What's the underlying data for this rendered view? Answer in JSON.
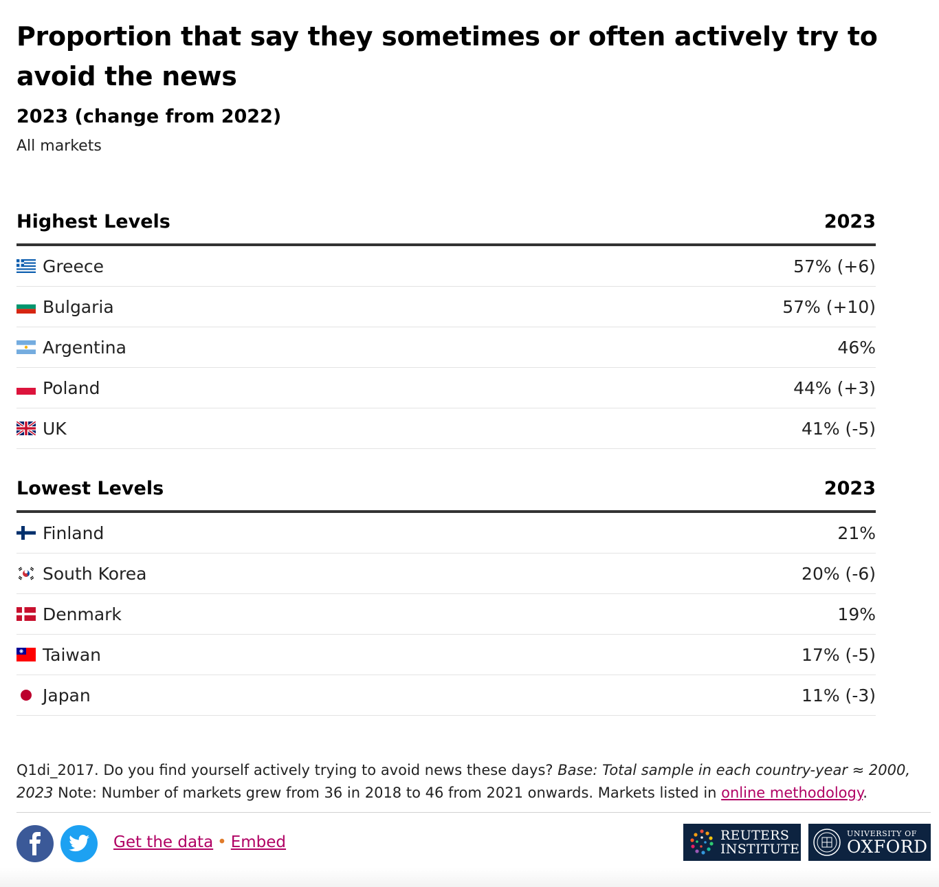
{
  "title": "Proportion that say they sometimes or often actively try to avoid the news",
  "subtitle": "2023 (change from 2022)",
  "markets": "All markets",
  "chart_data": {
    "type": "table",
    "title": "Proportion that say they sometimes or often actively try to avoid the news",
    "subtitle": "2023 (change from 2022)",
    "sections": [
      {
        "heading": "Highest Levels",
        "column": "2023",
        "rows": [
          {
            "country": "Greece",
            "flag": "greece-flag",
            "value": 57,
            "display": "57% (+6)"
          },
          {
            "country": "Bulgaria",
            "flag": "bulgaria-flag",
            "value": 57,
            "display": "57% (+10)"
          },
          {
            "country": "Argentina",
            "flag": "argentina-flag",
            "value": 46,
            "display": "46%"
          },
          {
            "country": "Poland",
            "flag": "poland-flag",
            "value": 44,
            "display": "44% (+3)"
          },
          {
            "country": "UK",
            "flag": "uk-flag",
            "value": 41,
            "display": "41% (-5)"
          }
        ]
      },
      {
        "heading": "Lowest Levels",
        "column": "2023",
        "rows": [
          {
            "country": "Finland",
            "flag": "finland-flag",
            "value": 21,
            "display": "21%"
          },
          {
            "country": "South Korea",
            "flag": "south-korea-flag",
            "value": 20,
            "display": "20% (-6)"
          },
          {
            "country": "Denmark",
            "flag": "denmark-flag",
            "value": 19,
            "display": "19%"
          },
          {
            "country": "Taiwan",
            "flag": "taiwan-flag",
            "value": 17,
            "display": "17% (-5)"
          },
          {
            "country": "Japan",
            "flag": "japan-flag",
            "value": 11,
            "display": "11% (-3)"
          }
        ]
      }
    ]
  },
  "note": {
    "code": "Q1di_2017.",
    "question": " Do you find yourself actively trying to avoid news these days? ",
    "base": "Base: Total sample in each country-year ≈ 2000, 2023",
    "text": " Note: Number of markets grew from 36 in 2018 to 46 from 2021 onwards. Markets listed in ",
    "link": "online methodology",
    "end": "."
  },
  "footer": {
    "get_data": "Get the data",
    "separator": "•",
    "embed": "Embed",
    "reuters_line1": "REUTERS",
    "reuters_line2": "INSTITUTE",
    "oxford_line1": "UNIVERSITY OF",
    "oxford_line2": "OXFORD"
  },
  "colors": {
    "link": "#b00063",
    "separator": "#e07b2a",
    "facebook": "#3b5998",
    "twitter": "#1da1f2",
    "logo_bg": "#0d2340"
  }
}
